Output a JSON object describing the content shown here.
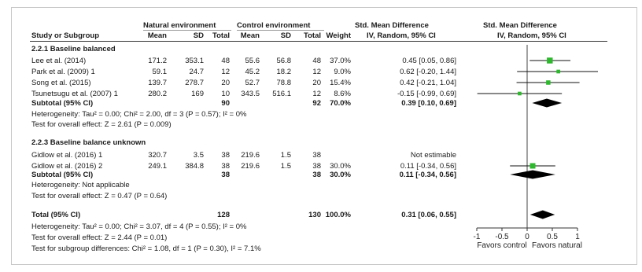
{
  "header": {
    "group_natural": "Natural environment",
    "group_control": "Control environment",
    "col_effect_left": "Std. Mean Difference",
    "col_effect_right": "Std. Mean Difference",
    "col_study": "Study or Subgroup",
    "col_mean_n": "Mean",
    "col_sd_n": "SD",
    "col_total_n": "Total",
    "col_mean_c": "Mean",
    "col_sd_c": "SD",
    "col_total_c": "Total",
    "col_weight": "Weight",
    "col_method_left": "IV, Random, 95% CI",
    "col_method_right": "IV, Random, 95% CI"
  },
  "subgroup1": {
    "title": "2.2.1 Baseline balanced",
    "studies": [
      {
        "name": "Lee et al. (2014)",
        "mean_n": "171.2",
        "sd_n": "353.1",
        "total_n": "48",
        "mean_c": "55.6",
        "sd_c": "56.8",
        "total_c": "48",
        "weight": "37.0%",
        "ci": "0.45 [0.05, 0.86]"
      },
      {
        "name": "Park et al. (2009) 1",
        "mean_n": "59.1",
        "sd_n": "24.7",
        "total_n": "12",
        "mean_c": "45.2",
        "sd_c": "18.2",
        "total_c": "12",
        "weight": "9.0%",
        "ci": "0.62 [-0.20, 1.44]"
      },
      {
        "name": "Song et al. (2015)",
        "mean_n": "139.7",
        "sd_n": "278.7",
        "total_n": "20",
        "mean_c": "52.7",
        "sd_c": "78.8",
        "total_c": "20",
        "weight": "15.4%",
        "ci": "0.42 [-0.21, 1.04]"
      },
      {
        "name": "Tsunetsugu et al. (2007) 1",
        "mean_n": "280.2",
        "sd_n": "169",
        "total_n": "10",
        "mean_c": "343.5",
        "sd_c": "516.1",
        "total_c": "12",
        "weight": "8.6%",
        "ci": "-0.15 [-0.99, 0.69]"
      }
    ],
    "subtotal": {
      "label": "Subtotal (95% CI)",
      "total_n": "90",
      "total_c": "92",
      "weight": "70.0%",
      "ci": "0.39 [0.10, 0.69]"
    },
    "heterogeneity": "Heterogeneity: Tau² = 0.00; Chi² = 2.00, df = 3 (P = 0.57); I² = 0%",
    "overall": "Test for overall effect: Z = 2.61 (P = 0.009)"
  },
  "subgroup2": {
    "title": "2.2.3 Baseline balance unknown",
    "studies": [
      {
        "name": "Gidlow et al. (2016) 1",
        "mean_n": "320.7",
        "sd_n": "3.5",
        "total_n": "38",
        "mean_c": "219.6",
        "sd_c": "1.5",
        "total_c": "38",
        "weight": "",
        "ci": "Not estimable"
      },
      {
        "name": "Gidlow et al. (2016) 2",
        "mean_n": "249.1",
        "sd_n": "384.8",
        "total_n": "38",
        "mean_c": "219.6",
        "sd_c": "1.5",
        "total_c": "38",
        "weight": "30.0%",
        "ci": "0.11 [-0.34, 0.56]"
      }
    ],
    "subtotal": {
      "label": "Subtotal (95% CI)",
      "total_n": "38",
      "total_c": "38",
      "weight": "30.0%",
      "ci": "0.11 [-0.34, 0.56]"
    },
    "heterogeneity": "Heterogeneity: Not applicable",
    "overall": "Test for overall effect: Z = 0.47 (P = 0.64)"
  },
  "total": {
    "label": "Total (95% CI)",
    "total_n": "128",
    "total_c": "130",
    "weight": "100.0%",
    "ci": "0.31 [0.06, 0.55]",
    "heterogeneity": "Heterogeneity: Tau² = 0.00; Chi² = 3.07, df = 4 (P = 0.55); I² = 0%",
    "overall": "Test for overall effect: Z = 2.44 (P = 0.01)",
    "subgroup_diff": "Test for subgroup differences: Chi² = 1.08, df = 1 (P = 0.30), I² = 7.1%"
  },
  "chart_data": {
    "type": "scatter",
    "title": "",
    "xlabel": "",
    "xlim": [
      -1,
      1
    ],
    "xticks": [
      -1,
      -0.5,
      0,
      0.5,
      1
    ],
    "tick_labels": [
      "-1",
      "-0.5",
      "0",
      "0.5",
      "1"
    ],
    "favors_left": "Favors control",
    "favors_right": "Favors natural",
    "marker_color": "#2db82d",
    "diamond_color": "#000000",
    "studies": [
      {
        "name": "Lee et al. (2014)",
        "est": 0.45,
        "lo": 0.05,
        "hi": 0.86,
        "weight": 37.0
      },
      {
        "name": "Park et al. (2009) 1",
        "est": 0.62,
        "lo": -0.2,
        "hi": 1.44,
        "weight": 9.0
      },
      {
        "name": "Song et al. (2015)",
        "est": 0.42,
        "lo": -0.21,
        "hi": 1.04,
        "weight": 15.4
      },
      {
        "name": "Tsunetsugu et al. (2007) 1",
        "est": -0.15,
        "lo": -0.99,
        "hi": 0.69,
        "weight": 8.6
      },
      {
        "name": "Gidlow et al. (2016) 2",
        "est": 0.11,
        "lo": -0.34,
        "hi": 0.56,
        "weight": 30.0
      }
    ],
    "diamonds": [
      {
        "name": "Subtotal 2.2.1",
        "est": 0.39,
        "lo": 0.1,
        "hi": 0.69
      },
      {
        "name": "Subtotal 2.2.3",
        "est": 0.11,
        "lo": -0.34,
        "hi": 0.56
      },
      {
        "name": "Total",
        "est": 0.31,
        "lo": 0.06,
        "hi": 0.55
      }
    ]
  }
}
